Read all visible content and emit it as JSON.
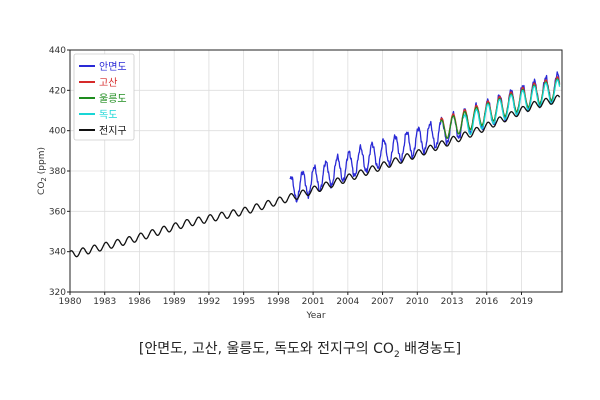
{
  "caption": {
    "before": "[안면도, 고산, 울릉도, 독도와 전지구의 CO",
    "sub": "2",
    "after": " 배경농도]"
  },
  "chart_data": {
    "type": "line",
    "ylabel_main": "CO",
    "ylabel_sub": "2",
    "ylabel_rest": " (ppm)",
    "xlabel": "Year",
    "xlim": [
      1980,
      2022.5
    ],
    "ylim": [
      320,
      440
    ],
    "x_ticks": [
      1980,
      1983,
      1986,
      1989,
      1992,
      1995,
      1998,
      2001,
      2004,
      2007,
      2010,
      2013,
      2016,
      2019
    ],
    "y_ticks": [
      320,
      340,
      360,
      380,
      400,
      420,
      440
    ],
    "legend_position": "top-left",
    "grid": true,
    "series": [
      {
        "name": "안면도",
        "color": "#2a2ad6",
        "x_start": 1999.0,
        "x_end": 2022.3,
        "trend": [
          [
            1999,
            370.5
          ],
          [
            2005,
            385
          ],
          [
            2010,
            394.5
          ],
          [
            2015,
            406
          ],
          [
            2020,
            418
          ],
          [
            2022.3,
            422
          ]
        ],
        "amplitude": 6.5
      },
      {
        "name": "고산",
        "color": "#d62a2a",
        "x_start": 2012.0,
        "x_end": 2022.3,
        "trend": [
          [
            2012,
            400.5
          ],
          [
            2016,
            409
          ],
          [
            2020,
            418
          ],
          [
            2022.3,
            421.5
          ]
        ],
        "amplitude": 5.5
      },
      {
        "name": "울릉도",
        "color": "#1e8c1e",
        "x_start": 2012.0,
        "x_end": 2022.3,
        "trend": [
          [
            2012,
            400
          ],
          [
            2016,
            408.5
          ],
          [
            2020,
            417.5
          ],
          [
            2022.3,
            421
          ]
        ],
        "amplitude": 5.0
      },
      {
        "name": "독도",
        "color": "#19d6d6",
        "x_start": 2014.0,
        "x_end": 2022.3,
        "trend": [
          [
            2014,
            402
          ],
          [
            2016,
            407.5
          ],
          [
            2020,
            416.5
          ],
          [
            2022.3,
            420
          ]
        ],
        "amplitude": 5.5
      },
      {
        "name": "전지구",
        "color": "#111111",
        "x_start": 1980.0,
        "x_end": 2022.3,
        "trend": [
          [
            1980,
            338.5
          ],
          [
            1985,
            345.5
          ],
          [
            1990,
            354
          ],
          [
            1995,
            360
          ],
          [
            2000,
            368.5
          ],
          [
            2005,
            378.5
          ],
          [
            2010,
            388.5
          ],
          [
            2015,
            399.5
          ],
          [
            2020,
            412.5
          ],
          [
            2022.3,
            416
          ]
        ],
        "amplitude": 1.8
      }
    ]
  }
}
